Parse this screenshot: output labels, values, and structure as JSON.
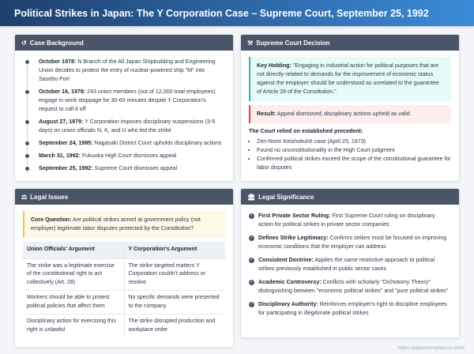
{
  "title": "Political Strikes in Japan: The Y Corporation Case – Supreme Court, September 25, 1992",
  "background": {
    "heading": "Case Background",
    "icon": "history-icon",
    "items": [
      {
        "date": "October 1978:",
        "text": " N Branch of the All Japan Shipbuilding and Engineering Union decides to protest the entry of nuclear-powered ship \"M\" into Sasebo Port"
      },
      {
        "date": "October 16, 1978:",
        "text": " 243 union members (out of 12,000 total employees) engage in work stoppage for 30-60 minutes despite Y Corporation's request to call it off"
      },
      {
        "date": "August 27, 1979:",
        "text": " Y Corporation imposes disciplinary suspensions (3-5 days) on union officials N, K, and U who led the strike"
      },
      {
        "date": "September 24, 1985:",
        "text": " Nagasaki District Court upholds disciplinary actions"
      },
      {
        "date": "March 31, 1992:",
        "text": " Fukuoka High Court dismisses appeal"
      },
      {
        "date": "September 25, 1992:",
        "text": " Supreme Court dismisses appeal"
      }
    ]
  },
  "decision": {
    "heading": "Supreme Court Decision",
    "icon": "gavel-icon",
    "holding_label": "Key Holding:",
    "holding": " \"Engaging in industrial action for political purposes that are not directly related to demands for the improvement of economic status against the employer should be understood as unrelated to the guarantee of Article 28 of the Constitution.\"",
    "result_label": "Result:",
    "result": " Appeal dismissed; disciplinary actions upheld as valid",
    "precedent_heading": "The Court relied on established precedent:",
    "precedents": [
      "Zen-Norin Keishokuhō case (April 25, 1973)",
      "Found no unconstitutionality in the High Court judgment",
      "Confirmed political strikes exceed the scope of the constitutional guarantee for labor disputes"
    ]
  },
  "issues": {
    "heading": "Legal Issues",
    "icon": "balance-scale-icon",
    "question_label": "Core Question:",
    "question": " Are political strikes aimed at government policy (not employer) legitimate labor disputes protected by the Constitution?",
    "columns": [
      "Union Officials' Argument",
      "Y Corporation's Argument"
    ],
    "rows": [
      [
        "The strike was a legitimate exercise of the constitutional right to act collectively (Art. 28)",
        "The strike targeted matters Y Corporation couldn't address or resolve"
      ],
      [
        "Workers should be able to protest political policies that affect them",
        "No specific demands were presented to the company"
      ],
      [
        "Disciplinary action for exercising this right is unlawful",
        "The strike disrupted production and workplace order"
      ]
    ]
  },
  "significance": {
    "heading": "Legal Significance",
    "icon": "landmark-icon",
    "items": [
      {
        "label": "First Private Sector Ruling:",
        "text": " First Supreme Court ruling on disciplinary action for political strikes in private sector companies"
      },
      {
        "label": "Defines Strike Legitimacy:",
        "text": " Confirms strikes must be focused on improving economic conditions that the employer can address"
      },
      {
        "label": "Consistent Doctrine:",
        "text": " Applies the same restrictive approach to political strikes previously established in public sector cases"
      },
      {
        "label": "Academic Controversy:",
        "text": " Conflicts with scholarly \"Dichotomy Theory\" distinguishing between \"economic political strikes\" and \"pure political strikes\""
      },
      {
        "label": "Disciplinary Authority:",
        "text": " Reinforces employer's right to discipline employees for participating in illegitimate political strikes"
      }
    ]
  },
  "footer": "https://japancompliance.com/"
}
